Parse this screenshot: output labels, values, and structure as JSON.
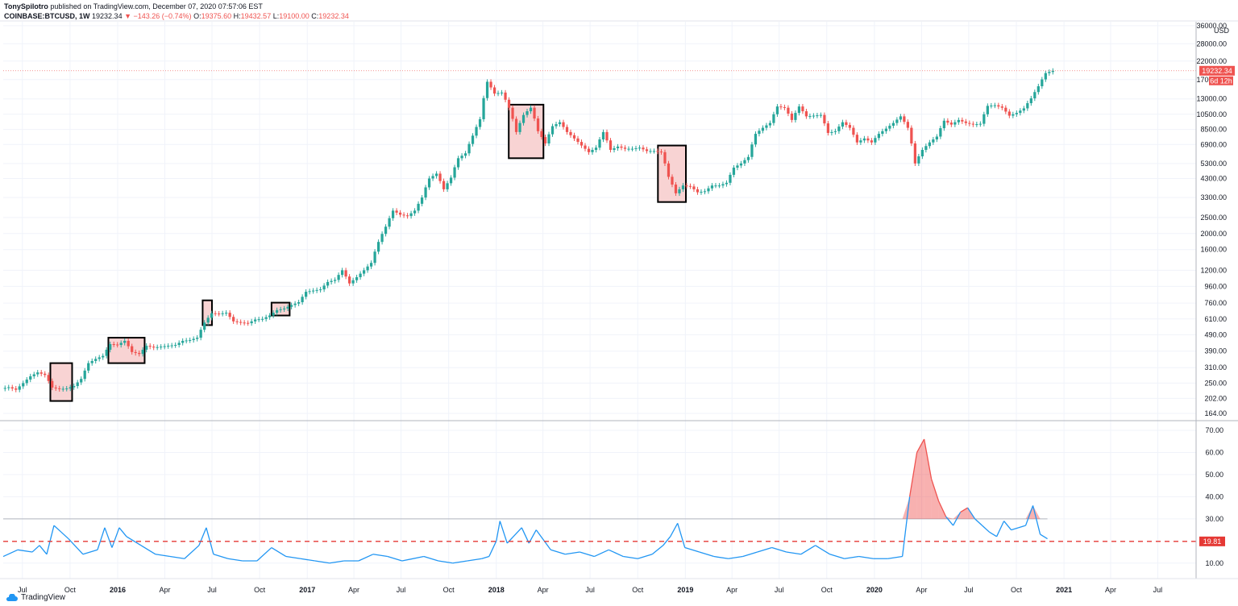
{
  "header": {
    "author": "TonySpilotro",
    "published_text": "published on TradingView.com, December 07, 2020 07:57:06 EST",
    "symbol": "COINBASE:BTCUSD, 1W",
    "last": "19232.34",
    "change": "▼ −143.26 (−0.74%)",
    "ohlc_labels": [
      "O:",
      "H:",
      "L:",
      "C:"
    ],
    "ohlc_values": [
      "19375.60",
      "19432.57",
      "19100.00",
      "19232.34"
    ]
  },
  "price_axis": {
    "currency": "USD",
    "ticks": [
      "36000.00",
      "28000.00",
      "22000.00",
      "17000.00",
      "13000.00",
      "10500.00",
      "8500.00",
      "6900.00",
      "5300.00",
      "4300.00",
      "3300.00",
      "2500.00",
      "2000.00",
      "1600.00",
      "1200.00",
      "960.00",
      "760.00",
      "610.00",
      "490.00",
      "390.00",
      "310.00",
      "250.00",
      "202.00",
      "164.00"
    ],
    "last_price_tag": "19232.34",
    "countdown_tag": "6d 12h"
  },
  "indicator_axis": {
    "ticks": [
      "70.00",
      "60.00",
      "50.00",
      "40.00",
      "30.00",
      "10.00"
    ],
    "threshold_tag": "19.81"
  },
  "time_axis": {
    "labels": [
      "Jul",
      "Oct",
      "2016",
      "Apr",
      "Jul",
      "Oct",
      "2017",
      "Apr",
      "Jul",
      "Oct",
      "2018",
      "Apr",
      "Jul",
      "Oct",
      "2019",
      "Apr",
      "Jul",
      "Oct",
      "2020",
      "Apr",
      "Jul",
      "Oct",
      "2021",
      "Apr",
      "Jul"
    ],
    "bold_labels": [
      "2016",
      "2017",
      "2018",
      "2019",
      "2020",
      "2021"
    ]
  },
  "footer": {
    "logo_text": "TradingView"
  },
  "colors": {
    "up": "#26a69a",
    "down": "#ef5350",
    "volatility_line": "#2196f3",
    "threshold": "#e53935",
    "highlight_fill": "#f8d3d3",
    "grid": "#f0f3fa"
  },
  "chart_data": [
    {
      "type": "candlestick",
      "title": "COINBASE:BTCUSD, 1W",
      "ylabel": "USD",
      "scale": "log",
      "ylim": [
        150,
        38000
      ],
      "x_range": [
        "2015-05-25",
        "2021-09-13"
      ],
      "weekly_closes": [
        [
          "2015-05-25",
          236
        ],
        [
          "2015-06-08",
          228
        ],
        [
          "2015-06-22",
          250
        ],
        [
          "2015-07-06",
          275
        ],
        [
          "2015-07-20",
          290
        ],
        [
          "2015-08-03",
          280
        ],
        [
          "2015-08-17",
          235
        ],
        [
          "2015-08-31",
          230
        ],
        [
          "2015-09-14",
          232
        ],
        [
          "2015-09-28",
          240
        ],
        [
          "2015-10-12",
          265
        ],
        [
          "2015-10-26",
          330
        ],
        [
          "2015-11-09",
          350
        ],
        [
          "2015-11-23",
          365
        ],
        [
          "2015-12-07",
          430
        ],
        [
          "2015-12-21",
          425
        ],
        [
          "2016-01-04",
          450
        ],
        [
          "2016-01-18",
          385
        ],
        [
          "2016-02-01",
          375
        ],
        [
          "2016-02-15",
          420
        ],
        [
          "2016-02-29",
          410
        ],
        [
          "2016-03-14",
          415
        ],
        [
          "2016-03-28",
          420
        ],
        [
          "2016-04-11",
          425
        ],
        [
          "2016-04-25",
          450
        ],
        [
          "2016-05-09",
          455
        ],
        [
          "2016-05-23",
          470
        ],
        [
          "2016-06-06",
          580
        ],
        [
          "2016-06-20",
          660
        ],
        [
          "2016-07-04",
          655
        ],
        [
          "2016-07-18",
          665
        ],
        [
          "2016-08-01",
          590
        ],
        [
          "2016-08-15",
          580
        ],
        [
          "2016-08-29",
          575
        ],
        [
          "2016-09-12",
          605
        ],
        [
          "2016-09-26",
          610
        ],
        [
          "2016-10-10",
          640
        ],
        [
          "2016-10-24",
          690
        ],
        [
          "2016-11-07",
          705
        ],
        [
          "2016-11-21",
          740
        ],
        [
          "2016-12-05",
          770
        ],
        [
          "2016-12-19",
          890
        ],
        [
          "2017-01-02",
          905
        ],
        [
          "2017-01-16",
          920
        ],
        [
          "2017-01-30",
          1020
        ],
        [
          "2017-02-13",
          1050
        ],
        [
          "2017-02-27",
          1200
        ],
        [
          "2017-03-13",
          1000
        ],
        [
          "2017-03-27",
          1090
        ],
        [
          "2017-04-10",
          1200
        ],
        [
          "2017-04-24",
          1330
        ],
        [
          "2017-05-08",
          1780
        ],
        [
          "2017-05-22",
          2200
        ],
        [
          "2017-06-05",
          2750
        ],
        [
          "2017-06-19",
          2600
        ],
        [
          "2017-07-03",
          2550
        ],
        [
          "2017-07-17",
          2750
        ],
        [
          "2017-07-31",
          3300
        ],
        [
          "2017-08-14",
          4300
        ],
        [
          "2017-08-28",
          4600
        ],
        [
          "2017-09-11",
          3700
        ],
        [
          "2017-09-25",
          4350
        ],
        [
          "2017-10-09",
          5700
        ],
        [
          "2017-10-23",
          6100
        ],
        [
          "2017-11-06",
          7800
        ],
        [
          "2017-11-20",
          9800
        ],
        [
          "2017-12-04",
          16500
        ],
        [
          "2017-12-18",
          14000
        ],
        [
          "2018-01-01",
          14200
        ],
        [
          "2018-01-15",
          11500
        ],
        [
          "2018-01-29",
          8200
        ],
        [
          "2018-02-12",
          10400
        ],
        [
          "2018-02-26",
          11500
        ],
        [
          "2018-03-12",
          8300
        ],
        [
          "2018-03-26",
          7000
        ],
        [
          "2018-04-09",
          8900
        ],
        [
          "2018-04-23",
          9400
        ],
        [
          "2018-05-07",
          8200
        ],
        [
          "2018-05-21",
          7500
        ],
        [
          "2018-06-04",
          6800
        ],
        [
          "2018-06-18",
          6200
        ],
        [
          "2018-07-02",
          6600
        ],
        [
          "2018-07-16",
          8200
        ],
        [
          "2018-07-30",
          6400
        ],
        [
          "2018-08-13",
          6700
        ],
        [
          "2018-08-27",
          6500
        ],
        [
          "2018-09-10",
          6500
        ],
        [
          "2018-09-24",
          6600
        ],
        [
          "2018-10-08",
          6300
        ],
        [
          "2018-10-22",
          6300
        ],
        [
          "2018-11-05",
          6200
        ],
        [
          "2018-11-19",
          4400
        ],
        [
          "2018-12-03",
          3500
        ],
        [
          "2018-12-17",
          3900
        ],
        [
          "2018-12-31",
          3850
        ],
        [
          "2019-01-14",
          3550
        ],
        [
          "2019-01-28",
          3600
        ],
        [
          "2019-02-11",
          3900
        ],
        [
          "2019-02-25",
          3900
        ],
        [
          "2019-03-11",
          4050
        ],
        [
          "2019-03-25",
          5000
        ],
        [
          "2019-04-08",
          5300
        ],
        [
          "2019-04-22",
          5800
        ],
        [
          "2019-05-06",
          8000
        ],
        [
          "2019-05-20",
          8700
        ],
        [
          "2019-06-03",
          9300
        ],
        [
          "2019-06-17",
          11700
        ],
        [
          "2019-07-01",
          11500
        ],
        [
          "2019-07-15",
          9700
        ],
        [
          "2019-07-29",
          11700
        ],
        [
          "2019-08-12",
          10200
        ],
        [
          "2019-08-26",
          10300
        ],
        [
          "2019-09-09",
          10400
        ],
        [
          "2019-09-23",
          8100
        ],
        [
          "2019-10-07",
          8300
        ],
        [
          "2019-10-21",
          9400
        ],
        [
          "2019-11-04",
          8700
        ],
        [
          "2019-11-18",
          7100
        ],
        [
          "2019-12-02",
          7500
        ],
        [
          "2019-12-16",
          7100
        ],
        [
          "2019-12-30",
          8000
        ],
        [
          "2020-01-13",
          8600
        ],
        [
          "2020-01-27",
          9300
        ],
        [
          "2020-02-10",
          10200
        ],
        [
          "2020-02-24",
          8700
        ],
        [
          "2020-03-09",
          5300
        ],
        [
          "2020-03-23",
          6400
        ],
        [
          "2020-04-06",
          7100
        ],
        [
          "2020-04-20",
          7700
        ],
        [
          "2020-05-04",
          9600
        ],
        [
          "2020-05-18",
          9100
        ],
        [
          "2020-06-01",
          9700
        ],
        [
          "2020-06-15",
          9300
        ],
        [
          "2020-06-29",
          9100
        ],
        [
          "2020-07-13",
          9200
        ],
        [
          "2020-07-27",
          11800
        ],
        [
          "2020-08-10",
          11900
        ],
        [
          "2020-08-24",
          11500
        ],
        [
          "2020-09-07",
          10300
        ],
        [
          "2020-09-21",
          10700
        ],
        [
          "2020-10-05",
          11400
        ],
        [
          "2020-10-19",
          13100
        ],
        [
          "2020-11-02",
          15500
        ],
        [
          "2020-11-16",
          18600
        ],
        [
          "2020-11-30",
          19232.34
        ]
      ],
      "last_close": 19232.34,
      "annotations": "rectangles over consolidation periods"
    },
    {
      "type": "line",
      "ylim": [
        3,
        74
      ],
      "threshold": 19.81,
      "upper_band": 30,
      "x_range": [
        "2015-05-25",
        "2021-09-13"
      ],
      "points": [
        [
          "2015-05-25",
          13
        ],
        [
          "2015-06-22",
          16
        ],
        [
          "2015-07-20",
          15
        ],
        [
          "2015-08-03",
          18
        ],
        [
          "2015-08-17",
          14
        ],
        [
          "2015-08-31",
          27
        ],
        [
          "2015-09-14",
          24
        ],
        [
          "2015-09-28",
          21
        ],
        [
          "2015-10-26",
          14
        ],
        [
          "2015-11-23",
          16
        ],
        [
          "2015-12-07",
          26
        ],
        [
          "2015-12-21",
          17
        ],
        [
          "2016-01-04",
          26
        ],
        [
          "2016-01-18",
          22
        ],
        [
          "2016-02-15",
          18
        ],
        [
          "2016-03-14",
          14
        ],
        [
          "2016-04-11",
          13
        ],
        [
          "2016-05-09",
          12
        ],
        [
          "2016-06-06",
          18
        ],
        [
          "2016-06-20",
          26
        ],
        [
          "2016-07-04",
          14
        ],
        [
          "2016-08-01",
          12
        ],
        [
          "2016-08-29",
          11
        ],
        [
          "2016-09-26",
          11
        ],
        [
          "2016-10-24",
          17
        ],
        [
          "2016-11-21",
          13
        ],
        [
          "2016-12-19",
          12
        ],
        [
          "2017-01-16",
          11
        ],
        [
          "2017-02-13",
          10
        ],
        [
          "2017-03-13",
          11
        ],
        [
          "2017-04-10",
          11
        ],
        [
          "2017-05-08",
          14
        ],
        [
          "2017-06-05",
          13
        ],
        [
          "2017-07-03",
          11
        ],
        [
          "2017-08-14",
          13
        ],
        [
          "2017-09-11",
          11
        ],
        [
          "2017-10-09",
          10
        ],
        [
          "2017-11-06",
          11
        ],
        [
          "2017-12-04",
          12
        ],
        [
          "2017-12-18",
          13
        ],
        [
          "2018-01-01",
          20
        ],
        [
          "2018-01-08",
          29
        ],
        [
          "2018-01-22",
          19
        ],
        [
          "2018-02-19",
          26
        ],
        [
          "2018-03-05",
          19
        ],
        [
          "2018-03-19",
          25
        ],
        [
          "2018-04-16",
          16
        ],
        [
          "2018-05-14",
          14
        ],
        [
          "2018-06-11",
          15
        ],
        [
          "2018-07-09",
          13
        ],
        [
          "2018-08-06",
          16
        ],
        [
          "2018-09-03",
          13
        ],
        [
          "2018-10-01",
          12
        ],
        [
          "2018-10-29",
          14
        ],
        [
          "2018-11-19",
          18
        ],
        [
          "2018-12-03",
          22
        ],
        [
          "2018-12-17",
          28
        ],
        [
          "2018-12-31",
          17
        ],
        [
          "2019-01-28",
          15
        ],
        [
          "2019-02-25",
          13
        ],
        [
          "2019-03-25",
          12
        ],
        [
          "2019-04-22",
          13
        ],
        [
          "2019-05-20",
          15
        ],
        [
          "2019-06-17",
          17
        ],
        [
          "2019-07-15",
          15
        ],
        [
          "2019-08-12",
          14
        ],
        [
          "2019-09-09",
          18
        ],
        [
          "2019-10-07",
          14
        ],
        [
          "2019-11-04",
          12
        ],
        [
          "2019-12-02",
          13
        ],
        [
          "2019-12-30",
          12
        ],
        [
          "2020-01-27",
          12
        ],
        [
          "2020-02-24",
          13
        ],
        [
          "2020-03-09",
          40
        ],
        [
          "2020-03-23",
          60
        ],
        [
          "2020-04-06",
          66
        ],
        [
          "2020-04-20",
          48
        ],
        [
          "2020-05-04",
          38
        ],
        [
          "2020-05-18",
          31
        ],
        [
          "2020-06-01",
          27
        ],
        [
          "2020-06-15",
          33
        ],
        [
          "2020-06-29",
          35
        ],
        [
          "2020-07-13",
          30
        ],
        [
          "2020-07-27",
          27
        ],
        [
          "2020-08-10",
          24
        ],
        [
          "2020-08-24",
          22
        ],
        [
          "2020-09-07",
          29
        ],
        [
          "2020-09-21",
          25
        ],
        [
          "2020-10-05",
          26
        ],
        [
          "2020-10-19",
          27
        ],
        [
          "2020-11-02",
          36
        ],
        [
          "2020-11-16",
          23
        ],
        [
          "2020-11-30",
          21
        ]
      ]
    }
  ]
}
